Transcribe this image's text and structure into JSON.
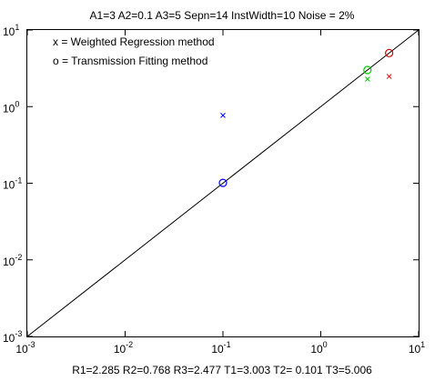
{
  "chart_data": {
    "type": "scatter",
    "title": "A1=3   A2=0.1   A3=5  Sepn=14  InstWidth=10  Noise = 2%",
    "subtitle": "R1=2.285  R2=0.768  R3=2.477      T1=3.003  T2= 0.101  T3=5.006",
    "xscale": "log",
    "yscale": "log",
    "xlim": [
      0.001,
      10
    ],
    "ylim": [
      0.001,
      10
    ],
    "grid": false,
    "x_ticks": [
      {
        "base": "10",
        "exp": "-3",
        "value": 0.001
      },
      {
        "base": "10",
        "exp": "-2",
        "value": 0.01
      },
      {
        "base": "10",
        "exp": "-1",
        "value": 0.1
      },
      {
        "base": "10",
        "exp": "0",
        "value": 1
      },
      {
        "base": "10",
        "exp": "1",
        "value": 10
      }
    ],
    "y_ticks": [
      {
        "base": "10",
        "exp": "-3",
        "value": 0.001
      },
      {
        "base": "10",
        "exp": "-2",
        "value": 0.01
      },
      {
        "base": "10",
        "exp": "-1",
        "value": 0.1
      },
      {
        "base": "10",
        "exp": "0",
        "value": 1
      },
      {
        "base": "10",
        "exp": "1",
        "value": 10
      }
    ],
    "legend_placement": "top-left",
    "legend": [
      "x = Weighted Regression method",
      "o = Transmission Fitting method"
    ],
    "reference_line": {
      "from": [
        0.001,
        0.001
      ],
      "to": [
        10,
        10
      ],
      "color": "#000000"
    },
    "series": [
      {
        "marker": "x",
        "points": [
          {
            "x": 3,
            "y": 2.285,
            "color": "#00cc00"
          },
          {
            "x": 0.1,
            "y": 0.768,
            "color": "#0000ff"
          },
          {
            "x": 5,
            "y": 2.477,
            "color": "#ff0000"
          }
        ]
      },
      {
        "marker": "o",
        "points": [
          {
            "x": 3,
            "y": 3.003,
            "color": "#00cc00"
          },
          {
            "x": 0.1,
            "y": 0.101,
            "color": "#0000ff"
          },
          {
            "x": 5,
            "y": 5.006,
            "color": "#cc0000"
          }
        ]
      }
    ]
  }
}
